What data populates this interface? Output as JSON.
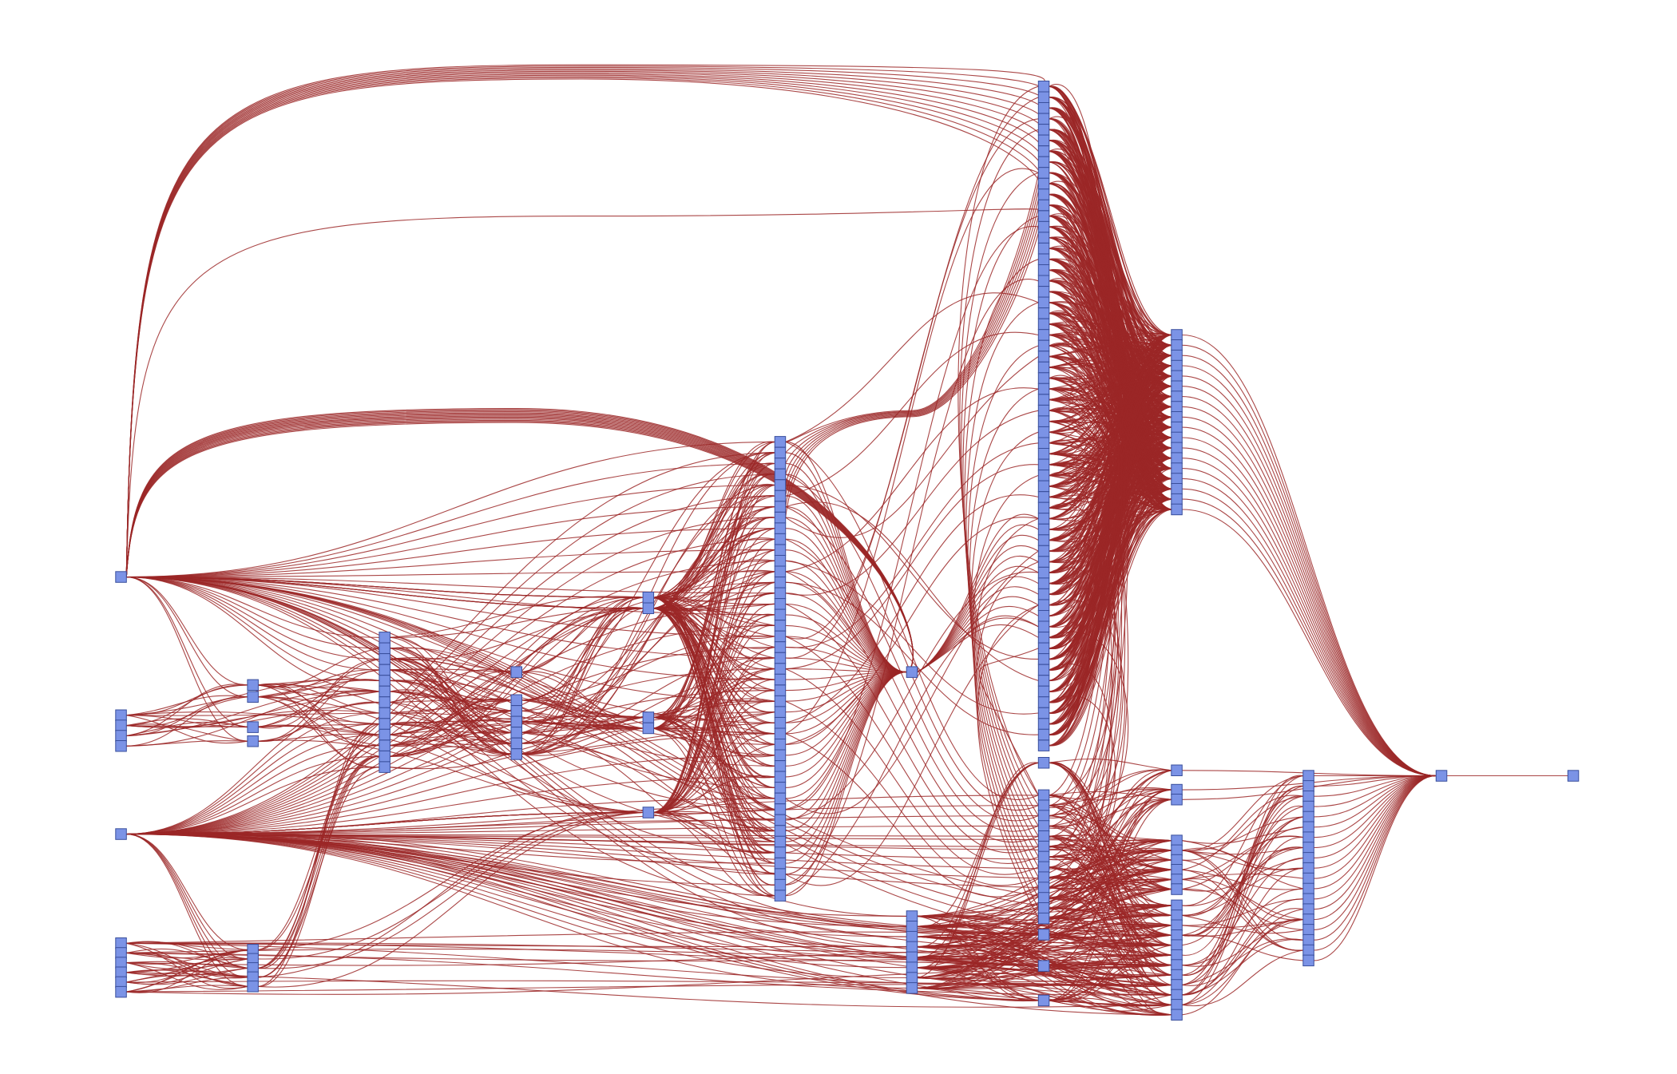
{
  "diagram": {
    "type": "layered-graph",
    "background": "#ffffff",
    "node_fill": "#7b93e6",
    "node_stroke": "#3a4f9c",
    "edge_color": "#9b2727",
    "labels": []
  }
}
